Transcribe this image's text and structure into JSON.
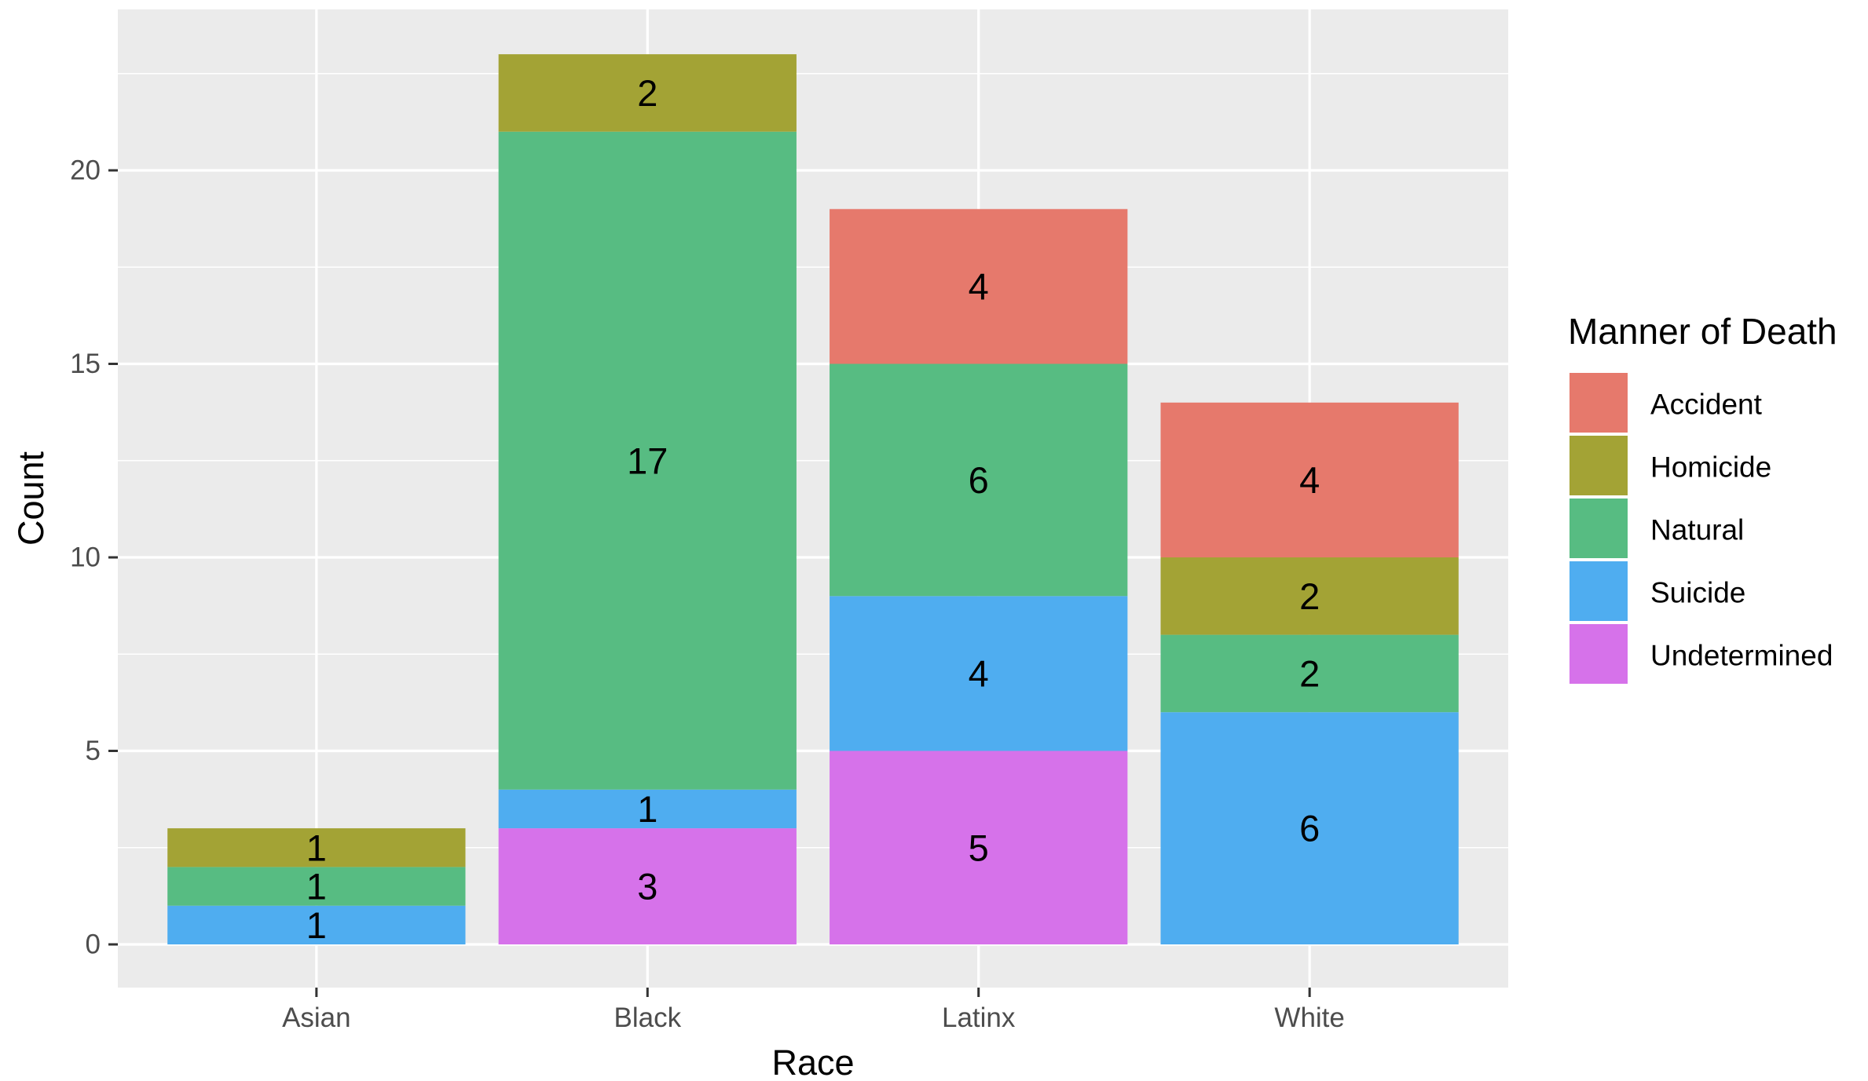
{
  "chart_data": {
    "type": "bar",
    "stacked": true,
    "title": "",
    "xlabel": "Race",
    "ylabel": "Count",
    "categories": [
      "Asian",
      "Black",
      "Latinx",
      "White"
    ],
    "ylim": [
      -1.2,
      24.1
    ],
    "yticks": [
      0,
      5,
      10,
      15,
      20
    ],
    "grid": true,
    "legend_title": "Manner of Death",
    "legend_position": "right",
    "series": [
      {
        "name": "Accident",
        "color": "#E6796C",
        "values": [
          0,
          0,
          4,
          4
        ]
      },
      {
        "name": "Homicide",
        "color": "#A3A335",
        "values": [
          1,
          2,
          0,
          2
        ]
      },
      {
        "name": "Natural",
        "color": "#57BC82",
        "values": [
          1,
          17,
          6,
          2
        ]
      },
      {
        "name": "Suicide",
        "color": "#4FADF0",
        "values": [
          1,
          1,
          4,
          6
        ]
      },
      {
        "name": "Undetermined",
        "color": "#D672EA",
        "values": [
          0,
          3,
          5,
          0
        ]
      }
    ],
    "panel_background": "#EBEBEB",
    "grid_color": "#FFFFFF"
  }
}
